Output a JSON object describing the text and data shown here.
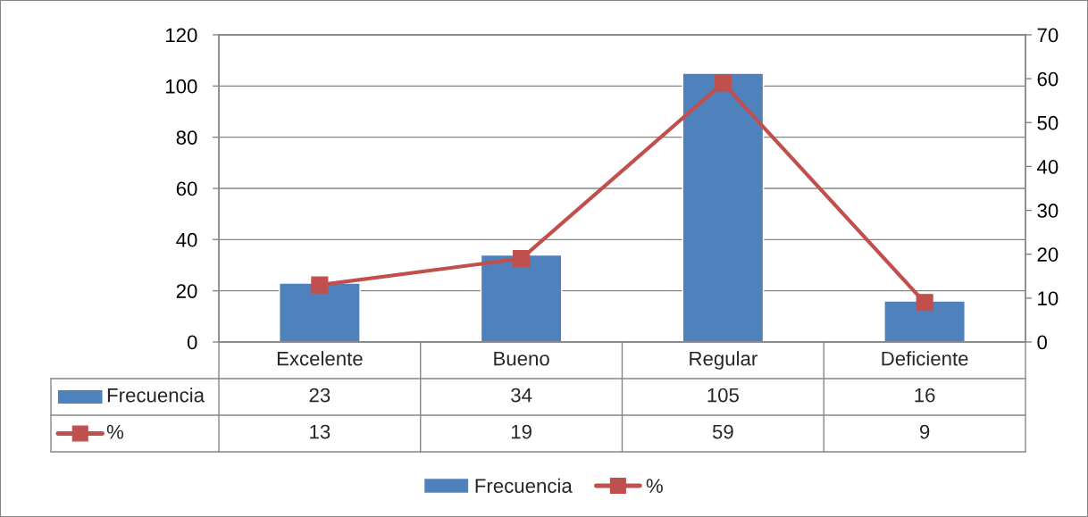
{
  "chart_data": {
    "type": "bar",
    "categories": [
      "Excelente",
      "Bueno",
      "Regular",
      "Deficiente"
    ],
    "series": [
      {
        "name": "Frecuencia",
        "color": "#4f81bd",
        "values": [
          23,
          34,
          105,
          16
        ]
      },
      {
        "name": "%",
        "type": "line",
        "axis": "y2",
        "color": "#c0504d",
        "marker": "square",
        "values": [
          13,
          19,
          59,
          9
        ]
      }
    ],
    "ylim": [
      0,
      120
    ],
    "yticks": [
      0,
      20,
      40,
      60,
      80,
      100,
      120
    ],
    "y2lim": [
      0,
      70
    ],
    "y2ticks": [
      0,
      10,
      20,
      30,
      40,
      50,
      60,
      70
    ],
    "grid": "y",
    "legend": "bottom",
    "data_labels": true
  }
}
